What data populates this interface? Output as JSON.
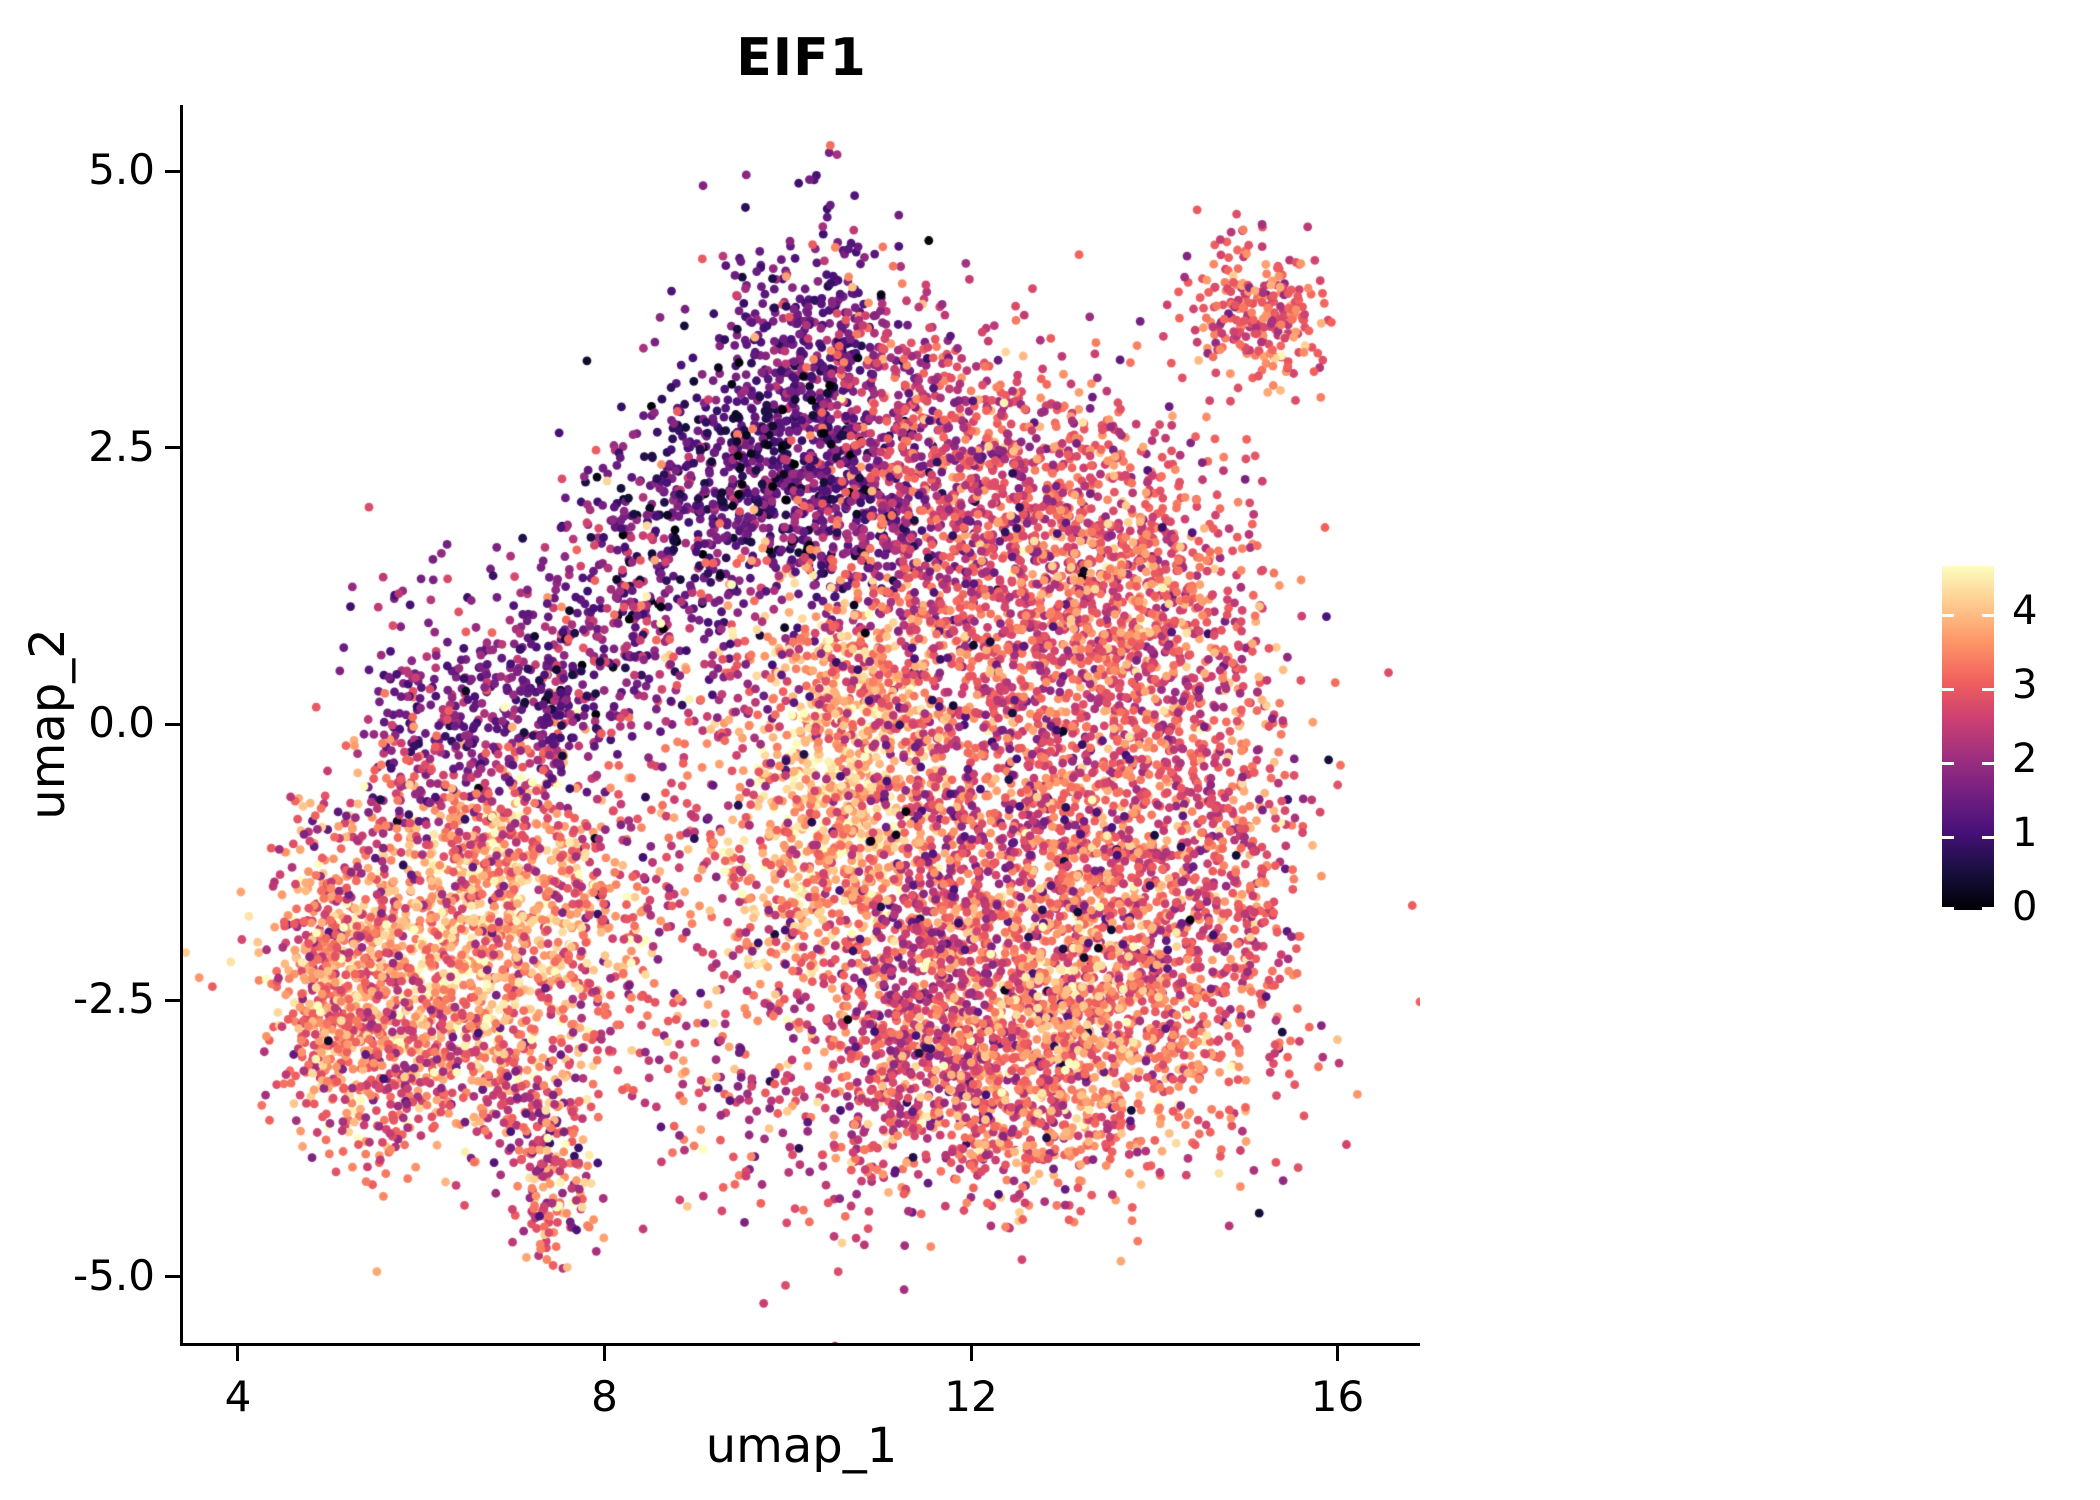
{
  "chart_data": {
    "type": "scatter",
    "title": "EIF1",
    "xlabel": "umap_1",
    "ylabel": "umap_2",
    "xlim": [
      3.4,
      16.9
    ],
    "ylim": [
      -5.6,
      5.6
    ],
    "x_ticks": [
      {
        "v": 4,
        "label": "4"
      },
      {
        "v": 8,
        "label": "8"
      },
      {
        "v": 12,
        "label": "12"
      },
      {
        "v": 16,
        "label": "16"
      }
    ],
    "y_ticks": [
      {
        "v": 5.0,
        "label": "5.0"
      },
      {
        "v": 2.5,
        "label": "2.5"
      },
      {
        "v": 0.0,
        "label": "0.0"
      },
      {
        "v": -2.5,
        "label": "-2.5"
      },
      {
        "v": -5.0,
        "label": "-5.0"
      }
    ],
    "colorbar": {
      "domain": [
        0,
        4.65
      ],
      "ticks": [
        {
          "v": 4,
          "label": "4"
        },
        {
          "v": 3,
          "label": "3"
        },
        {
          "v": 2,
          "label": "2"
        },
        {
          "v": 1,
          "label": "1"
        },
        {
          "v": 0,
          "label": "0"
        }
      ]
    },
    "colormap_stops": [
      "#000004",
      "#180f3e",
      "#451077",
      "#721f81",
      "#9f2f7f",
      "#cd4071",
      "#f1605d",
      "#fd9567",
      "#feca8d",
      "#fcfdbf"
    ],
    "point_radius": 4.4,
    "seed": 42,
    "cluster_fields": [
      "cx",
      "cy",
      "sx",
      "sy",
      "n",
      "expr_mean",
      "expr_sd"
    ],
    "clusters": [
      [
        6.1,
        -2.1,
        0.85,
        0.7,
        850,
        3.8,
        0.6
      ],
      [
        5.3,
        -2.6,
        0.45,
        0.55,
        300,
        3.3,
        0.7
      ],
      [
        7.0,
        -1.3,
        0.6,
        0.55,
        300,
        3.4,
        0.7
      ],
      [
        5.0,
        -1.8,
        0.3,
        0.6,
        160,
        2.9,
        0.7
      ],
      [
        6.6,
        -3.1,
        0.7,
        0.4,
        200,
        3.1,
        0.7
      ],
      [
        5.6,
        -3.3,
        0.5,
        0.4,
        120,
        2.7,
        0.7
      ],
      [
        7.6,
        -2.2,
        0.6,
        0.7,
        220,
        3.2,
        0.8
      ],
      [
        4.95,
        -2.35,
        0.18,
        0.45,
        70,
        3.6,
        0.6
      ],
      [
        6.4,
        0.05,
        0.5,
        0.4,
        160,
        1.5,
        0.5
      ],
      [
        5.8,
        -0.5,
        0.45,
        0.45,
        110,
        2.3,
        0.8
      ],
      [
        7.1,
        0.4,
        0.45,
        0.45,
        90,
        1.8,
        0.6
      ],
      [
        6.9,
        -0.6,
        0.6,
        0.5,
        140,
        2.8,
        0.8
      ],
      [
        6.2,
        0.9,
        0.7,
        0.4,
        40,
        1.8,
        0.7
      ],
      [
        7.45,
        -4.25,
        0.22,
        0.3,
        110,
        3.2,
        0.8
      ],
      [
        7.3,
        -3.7,
        0.25,
        0.35,
        90,
        2.4,
        0.9
      ],
      [
        10.25,
        3.35,
        0.5,
        0.65,
        420,
        1.5,
        0.5
      ],
      [
        9.7,
        2.3,
        0.65,
        0.5,
        330,
        1.2,
        0.5
      ],
      [
        10.8,
        1.9,
        0.55,
        0.5,
        330,
        1.6,
        0.55
      ],
      [
        8.8,
        1.7,
        0.65,
        0.55,
        260,
        1.4,
        0.6
      ],
      [
        8.1,
        0.8,
        0.5,
        0.55,
        180,
        1.7,
        0.7
      ],
      [
        7.4,
        0.15,
        0.3,
        0.3,
        80,
        1.3,
        0.5
      ],
      [
        10.4,
        2.9,
        0.7,
        0.9,
        45,
        3.4,
        0.6
      ],
      [
        9.9,
        2.4,
        0.8,
        0.7,
        70,
        0.35,
        0.3
      ],
      [
        10.6,
        -0.4,
        0.55,
        0.75,
        600,
        4.0,
        0.5
      ],
      [
        11.1,
        0.4,
        0.5,
        0.5,
        250,
        3.5,
        0.6
      ],
      [
        10.2,
        -1.4,
        0.5,
        0.5,
        220,
        3.6,
        0.6
      ],
      [
        12.7,
        0.9,
        1.0,
        0.85,
        850,
        2.9,
        0.6
      ],
      [
        13.6,
        -0.6,
        0.85,
        0.9,
        750,
        3.0,
        0.65
      ],
      [
        12.4,
        -2.1,
        0.95,
        0.8,
        800,
        3.35,
        0.6
      ],
      [
        13.8,
        -2.5,
        0.75,
        0.65,
        450,
        3.2,
        0.65
      ],
      [
        11.5,
        -3.2,
        0.75,
        0.6,
        420,
        2.8,
        0.7
      ],
      [
        12.6,
        -3.5,
        0.7,
        0.5,
        320,
        3.1,
        0.65
      ],
      [
        14.7,
        -1.4,
        0.5,
        0.8,
        280,
        2.9,
        0.6
      ],
      [
        12.1,
        2.2,
        0.8,
        0.65,
        420,
        2.75,
        0.55
      ],
      [
        11.4,
        3.1,
        0.5,
        0.5,
        170,
        2.6,
        0.6
      ],
      [
        13.3,
        1.9,
        0.7,
        0.6,
        300,
        2.8,
        0.6
      ],
      [
        14.3,
        0.6,
        0.55,
        0.7,
        250,
        2.9,
        0.6
      ],
      [
        11.4,
        -2.4,
        0.5,
        0.6,
        200,
        2.2,
        0.5
      ],
      [
        11.9,
        -1.2,
        0.6,
        0.6,
        250,
        2.6,
        0.7
      ],
      [
        12.6,
        -1.0,
        1.6,
        1.4,
        140,
        1.1,
        0.6
      ],
      [
        12.0,
        2.0,
        1.0,
        0.8,
        60,
        1.3,
        0.6
      ],
      [
        12.9,
        -2.9,
        0.8,
        0.5,
        250,
        3.7,
        0.5
      ],
      [
        13.6,
        1.1,
        0.6,
        0.5,
        160,
        3.5,
        0.5
      ],
      [
        15.0,
        3.75,
        0.42,
        0.35,
        200,
        2.9,
        0.5
      ],
      [
        15.45,
        3.6,
        0.2,
        0.3,
        60,
        3.3,
        0.5
      ],
      [
        9.0,
        -1.5,
        0.8,
        1.0,
        180,
        2.8,
        0.8
      ],
      [
        9.3,
        0.2,
        0.6,
        0.6,
        130,
        2.5,
        0.8
      ],
      [
        10.8,
        -2.2,
        2.6,
        1.5,
        250,
        3.0,
        0.8
      ],
      [
        10.5,
        1.2,
        1.5,
        0.8,
        120,
        2.3,
        0.8
      ],
      [
        15.2,
        -2.2,
        0.4,
        0.9,
        70,
        2.9,
        0.6
      ],
      [
        9.9,
        -3.4,
        0.7,
        0.6,
        120,
        2.6,
        0.8
      ]
    ]
  }
}
